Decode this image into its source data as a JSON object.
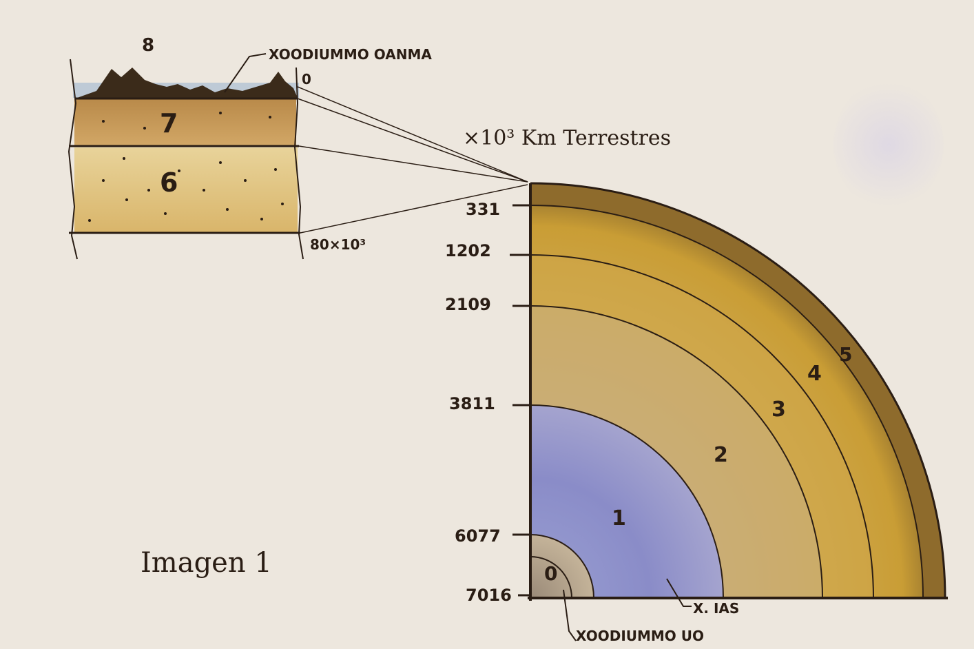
{
  "header": {
    "unit_label": "×10³ Km Terrestres"
  },
  "inset": {
    "surface_label": "XOODIUMMO OANMA",
    "peak_label": "8",
    "zero_label": "0",
    "layer_7_label": "7",
    "layer_6_label": "6",
    "depth_label": "80×10³"
  },
  "quadrant": {
    "depth_ticks": [
      "331",
      "1202",
      "2109",
      "3811",
      "6077",
      "7016"
    ],
    "layer_labels": [
      "0",
      "1",
      "2",
      "3",
      "4",
      "5"
    ],
    "bottom_right_label": "X. IAS",
    "bottom_label": "XOODIUMMO UO"
  },
  "caption": "Imagen 1",
  "colors": {
    "paper": "#ede7de",
    "ink": "#2a1d14",
    "core_blue": "#8d8fc9",
    "ochre": "#c9a043",
    "dark_ochre": "#8c6a2a"
  }
}
